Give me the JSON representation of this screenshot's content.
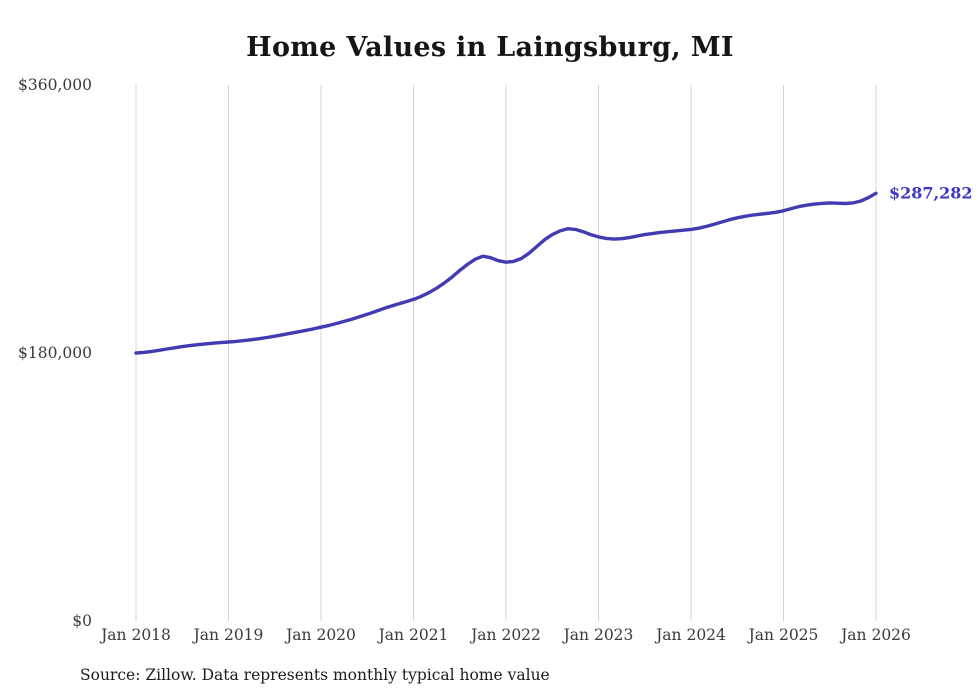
{
  "chart_data": {
    "type": "line",
    "title": "Home Values in Laingsburg, MI",
    "source": "Source: Zillow. Data represents monthly typical home value",
    "end_label": "$287,282",
    "end_value": 287282,
    "x_ticks": [
      "Jan 2018",
      "Jan 2019",
      "Jan 2020",
      "Jan 2021",
      "Jan 2022",
      "Jan 2023",
      "Jan 2024",
      "Jan 2025",
      "Jan 2026"
    ],
    "y_ticks": [
      {
        "label": "$0",
        "value": 0
      },
      {
        "label": "$180,000",
        "value": 180000
      },
      {
        "label": "$360,000",
        "value": 360000
      }
    ],
    "y_max": 360000,
    "grid": "vertical-only",
    "legend": "none",
    "series": [
      {
        "name": "Monthly typical home value",
        "frequency": "monthly",
        "start": "2018-01",
        "end": "2026-01",
        "values": [
          180000,
          180400,
          181000,
          181800,
          182700,
          183500,
          184300,
          185000,
          185600,
          186100,
          186600,
          187000,
          187400,
          187800,
          188300,
          188900,
          189600,
          190400,
          191300,
          192200,
          193200,
          194200,
          195200,
          196200,
          197300,
          198500,
          199800,
          201200,
          202700,
          204300,
          206000,
          207800,
          209600,
          211300,
          212900,
          214400,
          216000,
          218000,
          220500,
          223500,
          227000,
          231000,
          235500,
          239500,
          243000,
          245000,
          244000,
          242000,
          241000,
          241500,
          243500,
          247000,
          251500,
          256000,
          259500,
          262000,
          263500,
          263000,
          261500,
          259500,
          258000,
          257000,
          256500,
          256800,
          257500,
          258500,
          259500,
          260200,
          261000,
          261500,
          262000,
          262500,
          263000,
          263800,
          265000,
          266500,
          268000,
          269500,
          270800,
          271800,
          272600,
          273200,
          273800,
          274500,
          275500,
          277000,
          278300,
          279300,
          280000,
          280500,
          280800,
          280600,
          280400,
          280800,
          282000,
          284300,
          287282
        ]
      }
    ],
    "colors": {
      "line": "#423cb2",
      "end_label": "#3c38c6",
      "gridline": "#d4d4d4",
      "tick_text": "#3a3a3a",
      "title_text": "#151515"
    }
  }
}
